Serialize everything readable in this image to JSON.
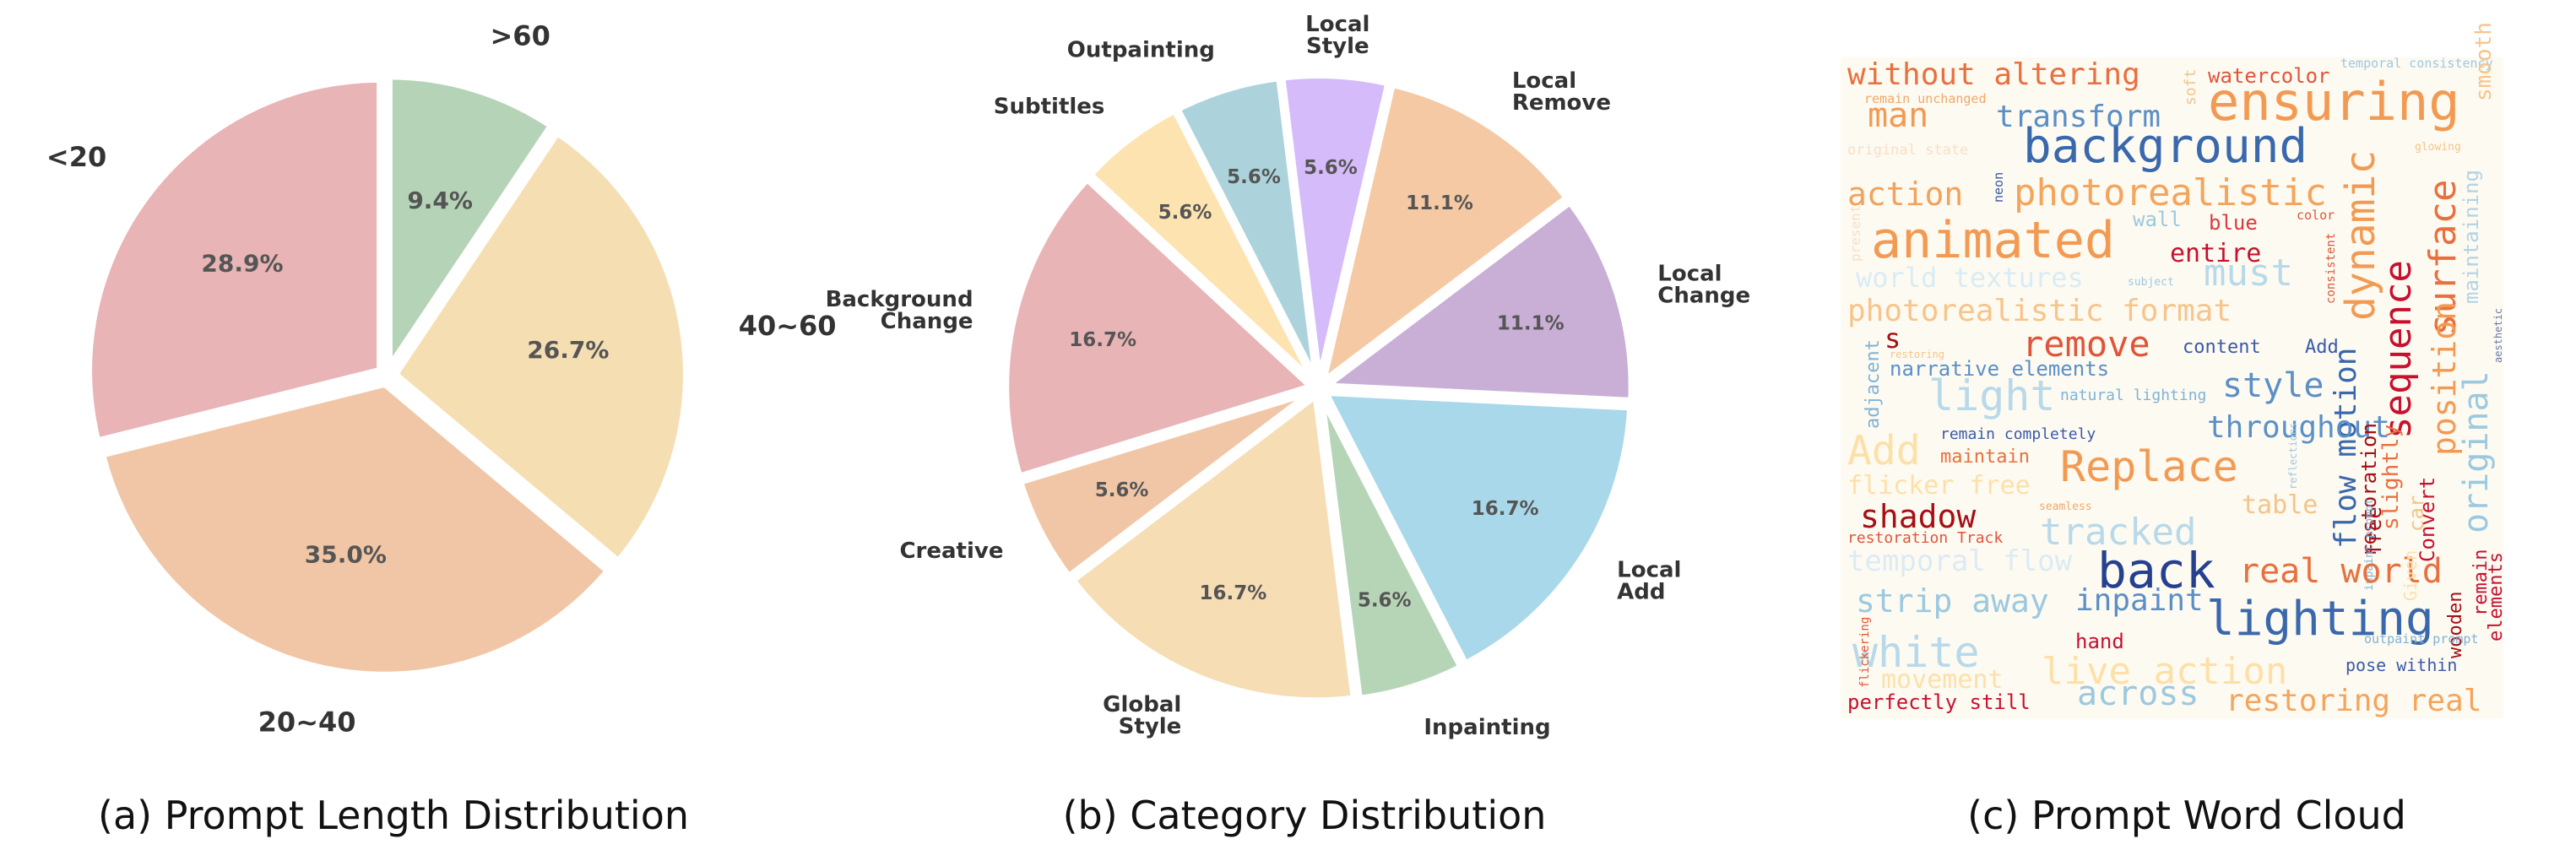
{
  "chart_data": [
    {
      "type": "pie",
      "title": "(a) Prompt Length Distribution",
      "categories": [
        ">60",
        "40~60",
        "20~40",
        "<20"
      ],
      "values": [
        9.4,
        26.7,
        35.0,
        28.9
      ],
      "value_labels": [
        "9.4%",
        "26.7%",
        "35.0%",
        "28.9%"
      ],
      "colors": [
        "#b5d3b6",
        "#f6deb3",
        "#f0c6a6",
        "#e8b4b6"
      ],
      "start_angle_deg": 90,
      "direction": "clockwise",
      "exploded": true
    },
    {
      "type": "pie",
      "title": "(b) Category Distribution",
      "categories": [
        "Local Style",
        "Local Remove",
        "Local Change",
        "Local Add",
        "Inpainting",
        "Global Style",
        "Creative",
        "Background Change",
        "Subtitles",
        "Outpainting"
      ],
      "label_lines": [
        [
          "Local",
          "Style"
        ],
        [
          "Local",
          "Remove"
        ],
        [
          "Local",
          "Change"
        ],
        [
          "Local",
          "Add"
        ],
        [
          "Inpainting"
        ],
        [
          "Global",
          "Style"
        ],
        [
          "Creative"
        ],
        [
          "Background",
          "Change"
        ],
        [
          "Subtitles"
        ],
        [
          "Outpainting"
        ]
      ],
      "values": [
        5.6,
        11.1,
        11.1,
        16.7,
        5.6,
        16.7,
        5.6,
        16.7,
        5.6,
        5.6
      ],
      "value_labels": [
        "5.6%",
        "11.1%",
        "11.1%",
        "16.7%",
        "5.6%",
        "16.7%",
        "5.6%",
        "16.7%",
        "5.6%",
        "5.6%"
      ],
      "colors": [
        "#d6bbfb",
        "#f5c9a3",
        "#c9aed6",
        "#a9d8ea",
        "#b6d5b6",
        "#f6ddb4",
        "#f0c6a6",
        "#e8b4b6",
        "#fde3b0",
        "#acd3dc"
      ],
      "start_angle_deg": 97,
      "direction": "clockwise",
      "exploded": true
    },
    {
      "type": "wordcloud",
      "title": "(c) Prompt Word Cloud",
      "background": "#fdfaf2",
      "words": [
        {
          "text": "without altering",
          "size": 36,
          "color": "#e8703e"
        },
        {
          "text": "watercolor",
          "size": 24,
          "color": "#e0553a"
        },
        {
          "text": "temporal consistency",
          "size": 15,
          "color": "#9cc9e0"
        },
        {
          "text": "soft",
          "size": 18,
          "color": "#f3c58a"
        },
        {
          "text": "ensuring",
          "size": 62,
          "color": "#f39a52"
        },
        {
          "text": "remain unchanged",
          "size": 15,
          "color": "#f0a868"
        },
        {
          "text": "man",
          "size": 40,
          "color": "#f39a52"
        },
        {
          "text": "transform",
          "size": 36,
          "color": "#5b8fc7"
        },
        {
          "text": "background",
          "size": 56,
          "color": "#3a68ad"
        },
        {
          "text": "original state",
          "size": 17,
          "color": "#f7e0c4"
        },
        {
          "text": "neon",
          "size": 15,
          "color": "#3a5aa8"
        },
        {
          "text": "glowing",
          "size": 13,
          "color": "#f3c58a"
        },
        {
          "text": "smooth",
          "size": 26,
          "color": "#f7c48a"
        },
        {
          "text": "action",
          "size": 38,
          "color": "#f2a25a"
        },
        {
          "text": "photorealistic",
          "size": 44,
          "color": "#f4a55c"
        },
        {
          "text": "dynamic",
          "size": 48,
          "color": "#f39a52"
        },
        {
          "text": "maintaining",
          "size": 24,
          "color": "#b0d4e6"
        },
        {
          "text": "wall",
          "size": 24,
          "color": "#9cc9e0"
        },
        {
          "text": "blue",
          "size": 24,
          "color": "#d93b3b"
        },
        {
          "text": "color",
          "size": 15,
          "color": "#e0553a"
        },
        {
          "text": "animated",
          "size": 60,
          "color": "#f39a52"
        },
        {
          "text": "entire",
          "size": 30,
          "color": "#c8102e"
        },
        {
          "text": "surface",
          "size": 44,
          "color": "#e8703e"
        },
        {
          "text": "present",
          "size": 16,
          "color": "#f7e0c4"
        },
        {
          "text": "must",
          "size": 44,
          "color": "#b7d9ea"
        },
        {
          "text": "sequence",
          "size": 44,
          "color": "#c8102e"
        },
        {
          "text": "position",
          "size": 38,
          "color": "#f39a52"
        },
        {
          "text": "world textures",
          "size": 32,
          "color": "#d9ecf4"
        },
        {
          "text": "subject",
          "size": 13,
          "color": "#9cc9e0"
        },
        {
          "text": "consistent",
          "size": 14,
          "color": "#e0553a"
        },
        {
          "text": "photorealistic format",
          "size": 36,
          "color": "#f7c48a"
        },
        {
          "text": "aesthetic",
          "size": 12,
          "color": "#6c7ba0"
        },
        {
          "text": "s",
          "size": 32,
          "color": "#a50f15"
        },
        {
          "text": "remove",
          "size": 42,
          "color": "#e0553a"
        },
        {
          "text": "content",
          "size": 22,
          "color": "#3a5aa8"
        },
        {
          "text": "Add",
          "size": 22,
          "color": "#3a5aa8"
        },
        {
          "text": "adjacent",
          "size": 22,
          "color": "#7fb3d5"
        },
        {
          "text": "restoring",
          "size": 12,
          "color": "#f3c58a"
        },
        {
          "text": "narrative elements",
          "size": 24,
          "color": "#5b8fc7"
        },
        {
          "text": "flow motion",
          "size": 36,
          "color": "#3a68ad"
        },
        {
          "text": "original",
          "size": 40,
          "color": "#9cc9e0"
        },
        {
          "text": "light",
          "size": 50,
          "color": "#b7d9ea"
        },
        {
          "text": "style",
          "size": 40,
          "color": "#5b8fc7"
        },
        {
          "text": "natural lighting",
          "size": 18,
          "color": "#7fb3d5"
        },
        {
          "text": "slightly",
          "size": 26,
          "color": "#e8703e"
        },
        {
          "text": "throughout",
          "size": 36,
          "color": "#5b8fc7"
        },
        {
          "text": "remain completely",
          "size": 18,
          "color": "#3a5aa8"
        },
        {
          "text": "Add",
          "size": 48,
          "color": "#fde0a8"
        },
        {
          "text": "maintain",
          "size": 22,
          "color": "#e8703e"
        },
        {
          "text": "Replace",
          "size": 50,
          "color": "#f39a52"
        },
        {
          "text": "car",
          "size": 24,
          "color": "#f3c58a"
        },
        {
          "text": "flicker free",
          "size": 30,
          "color": "#fde0a8"
        },
        {
          "text": "reflections",
          "size": 12,
          "color": "#9cc9e0"
        },
        {
          "text": "free",
          "size": 24,
          "color": "#a50f15"
        },
        {
          "text": "Convert",
          "size": 24,
          "color": "#c8102e"
        },
        {
          "text": "restoration",
          "size": 24,
          "color": "#a50f15"
        },
        {
          "text": "table",
          "size": 30,
          "color": "#f3c58a"
        },
        {
          "text": "shadow",
          "size": 38,
          "color": "#a50f15"
        },
        {
          "text": "seamless",
          "size": 13,
          "color": "#f0a868"
        },
        {
          "text": "tracked",
          "size": 44,
          "color": "#b7d9ea"
        },
        {
          "text": "inpaint prompt",
          "size": 13,
          "color": "#7fb3d5"
        },
        {
          "text": "restoration Track",
          "size": 18,
          "color": "#e0553a"
        },
        {
          "text": "temporal flow",
          "size": 34,
          "color": "#dcebf3"
        },
        {
          "text": "back",
          "size": 58,
          "color": "#25408f"
        },
        {
          "text": "real world",
          "size": 40,
          "color": "#e8703e"
        },
        {
          "text": "remain",
          "size": 22,
          "color": "#c8102e"
        },
        {
          "text": "elements",
          "size": 22,
          "color": "#c8102e"
        },
        {
          "text": "wooden",
          "size": 22,
          "color": "#a50f15"
        },
        {
          "text": "strip away",
          "size": 38,
          "color": "#9cc9e0"
        },
        {
          "text": "inpaint",
          "size": 36,
          "color": "#5b8fc7"
        },
        {
          "text": "Given",
          "size": 20,
          "color": "#fde0a8"
        },
        {
          "text": "lighting",
          "size": 56,
          "color": "#3a68ad"
        },
        {
          "text": "white",
          "size": 50,
          "color": "#b7d9ea"
        },
        {
          "text": "hand",
          "size": 24,
          "color": "#c8102e"
        },
        {
          "text": "outpaint prompt",
          "size": 15,
          "color": "#7fb3d5"
        },
        {
          "text": "live action",
          "size": 44,
          "color": "#fde0a8"
        },
        {
          "text": "flickering",
          "size": 14,
          "color": "#e0553a"
        },
        {
          "text": "movement",
          "size": 30,
          "color": "#fde0a8"
        },
        {
          "text": "pose within",
          "size": 20,
          "color": "#3a5aa8"
        },
        {
          "text": "across",
          "size": 40,
          "color": "#9cc9e0"
        },
        {
          "text": "restoring real",
          "size": 36,
          "color": "#f4a55c"
        },
        {
          "text": "perfectly still",
          "size": 24,
          "color": "#c8102e"
        }
      ]
    }
  ]
}
